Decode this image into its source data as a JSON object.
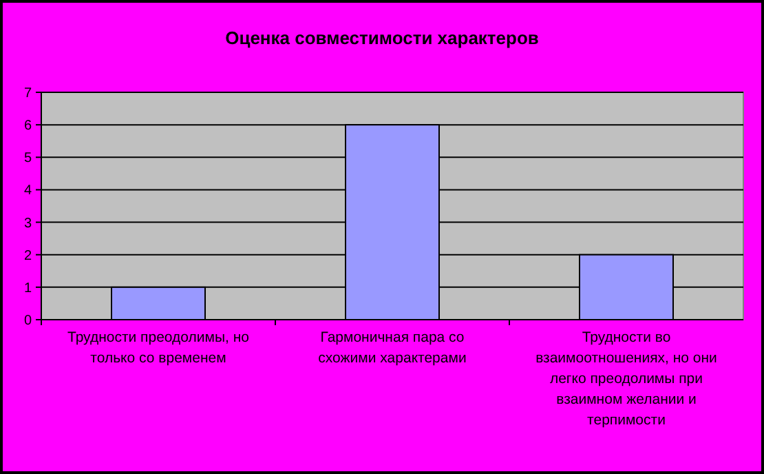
{
  "chart_data": {
    "type": "bar",
    "title": "Оценка совместимости характеров",
    "categories": [
      "Трудности преодолимы, но только со временем",
      "Гармоничная пара со схожими характерами",
      "Трудности во взаимоотношениях, но они легко преодолимы при взаимном желании и терпимости"
    ],
    "values": [
      1,
      6,
      2
    ],
    "color": "#9999ff",
    "ylim": [
      0,
      7
    ],
    "yticks": [
      0,
      1,
      2,
      3,
      4,
      5,
      6,
      7
    ],
    "grid": "y"
  }
}
